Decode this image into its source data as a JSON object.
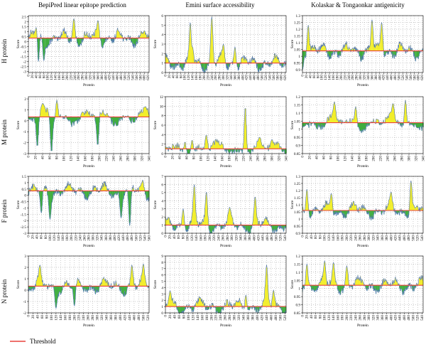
{
  "colors": {
    "above": "#f2ee2a",
    "below": "#3fae3f",
    "line": "#4f74b8",
    "threshold": "#e8423c",
    "grid": "#9a9a9a",
    "axis": "#000000"
  },
  "column_titles": [
    "BepiPred linear epitope prediction",
    "Emini surface accessibility",
    "Kolaskar & Tongaonkar antigenicity"
  ],
  "row_labels": [
    "H protein",
    "M protein",
    "F protein",
    "N protein"
  ],
  "xlabel": "Protein",
  "ylabel": "Score",
  "legend": {
    "label": "Threshold"
  },
  "chart_data": [
    {
      "type": "area",
      "row": 0,
      "col": 0,
      "xticks": [
        0,
        20,
        40,
        60,
        80,
        100,
        120,
        140,
        160,
        180,
        200,
        220,
        240,
        260,
        280,
        300,
        320,
        340,
        360,
        380,
        400,
        420,
        440,
        460,
        480,
        500,
        520,
        540,
        560,
        580,
        600,
        620
      ],
      "yticks": [
        -3,
        -2.5,
        -2,
        -1.5,
        -1,
        -0.5,
        0,
        0.5,
        1,
        1.5,
        2,
        2.5
      ],
      "xlim": [
        0,
        625
      ],
      "ylim": [
        -3.1,
        2.6
      ],
      "threshold": 0.35,
      "n": 625,
      "peaks": [
        [
          50,
          -2.6
        ],
        [
          80,
          -1.9
        ],
        [
          235,
          2.3
        ],
        [
          360,
          2.1
        ],
        [
          40,
          1.4
        ],
        [
          600,
          1.1
        ]
      ]
    },
    {
      "type": "area",
      "row": 0,
      "col": 1,
      "xticks": [
        0,
        20,
        40,
        60,
        80,
        100,
        120,
        140,
        160,
        180,
        200,
        220,
        240,
        260,
        280,
        300,
        320,
        340,
        360,
        380,
        400,
        420,
        440,
        460,
        480,
        500,
        520,
        540,
        560,
        580,
        600,
        620
      ],
      "yticks": [
        0,
        1,
        2,
        3,
        4,
        5,
        6
      ],
      "xlim": [
        0,
        625
      ],
      "ylim": [
        0,
        6
      ],
      "threshold": 1.0,
      "n": 625,
      "peaks": [
        [
          130,
          5.8
        ],
        [
          240,
          5.9
        ],
        [
          300,
          3.0
        ],
        [
          360,
          2.7
        ],
        [
          140,
          2.7
        ]
      ]
    },
    {
      "type": "area",
      "row": 0,
      "col": 2,
      "xticks": [
        0,
        20,
        40,
        60,
        80,
        100,
        120,
        140,
        160,
        180,
        200,
        220,
        240,
        260,
        280,
        300,
        320,
        340,
        360,
        380,
        400,
        420,
        440,
        460,
        480,
        500,
        520,
        540,
        560,
        580,
        600,
        620
      ],
      "yticks": [
        0.9,
        0.95,
        1.0,
        1.05,
        1.1,
        1.15,
        1.2,
        1.25,
        1.3
      ],
      "xlim": [
        0,
        625
      ],
      "ylim": [
        0.88,
        1.3
      ],
      "threshold": 1.04,
      "n": 625,
      "peaks": [
        [
          30,
          1.23
        ],
        [
          360,
          1.27
        ],
        [
          410,
          1.25
        ],
        [
          0,
          0.9
        ]
      ]
    },
    {
      "type": "area",
      "row": 1,
      "col": 0,
      "xticks": [
        0,
        20,
        40,
        60,
        80,
        100,
        120,
        140,
        160,
        180,
        200,
        220,
        240,
        260,
        280,
        300,
        320,
        340
      ],
      "yticks": [
        -3,
        -2,
        -1,
        0,
        1,
        2
      ],
      "xlim": [
        0,
        340
      ],
      "ylim": [
        -3,
        2.2
      ],
      "threshold": 0.35,
      "n": 340,
      "peaks": [
        [
          80,
          1.9
        ],
        [
          40,
          1.6
        ],
        [
          25,
          -2.4
        ],
        [
          65,
          -2.9
        ],
        [
          195,
          -2.3
        ],
        [
          330,
          1.3
        ]
      ]
    },
    {
      "type": "area",
      "row": 1,
      "col": 1,
      "xticks": [
        0,
        20,
        40,
        60,
        80,
        100,
        120,
        140,
        160,
        180,
        200,
        220,
        240,
        260,
        280,
        300,
        320,
        340
      ],
      "yticks": [
        0,
        2,
        4,
        6,
        8,
        10,
        12
      ],
      "xlim": [
        0,
        340
      ],
      "ylim": [
        0,
        12
      ],
      "threshold": 1.0,
      "n": 340,
      "peaks": [
        [
          225,
          10.0
        ],
        [
          115,
          4.0
        ],
        [
          75,
          2.9
        ],
        [
          55,
          2.5
        ],
        [
          265,
          3.5
        ],
        [
          300,
          3.0
        ]
      ]
    },
    {
      "type": "area",
      "row": 1,
      "col": 2,
      "xticks": [
        0,
        20,
        40,
        60,
        80,
        100,
        120,
        140,
        160,
        180,
        200,
        220,
        240,
        260,
        280,
        300,
        320,
        340
      ],
      "yticks": [
        0.85,
        0.9,
        0.95,
        1.0,
        1.05,
        1.1,
        1.15,
        1.2
      ],
      "xlim": [
        0,
        340
      ],
      "ylim": [
        0.85,
        1.2
      ],
      "threshold": 1.04,
      "n": 340,
      "peaks": [
        [
          90,
          1.17
        ],
        [
          150,
          1.14
        ],
        [
          255,
          1.16
        ],
        [
          290,
          1.18
        ]
      ]
    },
    {
      "type": "area",
      "row": 2,
      "col": 0,
      "xticks": [
        0,
        20,
        40,
        60,
        80,
        100,
        120,
        140,
        160,
        180,
        200,
        220,
        240,
        260,
        280,
        300,
        320,
        340,
        360,
        380,
        400,
        420,
        440,
        460,
        480,
        500,
        520,
        540,
        560
      ],
      "yticks": [
        -3,
        -2.5,
        -2,
        -1.5,
        -1,
        -0.5,
        0,
        0.5,
        1,
        1.5
      ],
      "xlim": [
        0,
        560
      ],
      "ylim": [
        -3,
        1.5
      ],
      "threshold": 0.35,
      "n": 560,
      "peaks": [
        [
          530,
          1.2
        ],
        [
          470,
          -2.4
        ],
        [
          100,
          -1.9
        ],
        [
          60,
          -1.4
        ],
        [
          430,
          -1.8
        ]
      ]
    },
    {
      "type": "area",
      "row": 2,
      "col": 1,
      "xticks": [
        0,
        20,
        40,
        60,
        80,
        100,
        120,
        140,
        160,
        180,
        200,
        220,
        240,
        260,
        280,
        300,
        320,
        340,
        360,
        380,
        400,
        420,
        440,
        460,
        480,
        500,
        520,
        540
      ],
      "yticks": [
        0,
        1,
        2,
        3,
        4,
        5,
        6,
        7
      ],
      "xlim": [
        0,
        545
      ],
      "ylim": [
        0,
        7
      ],
      "threshold": 1.0,
      "n": 545,
      "peaks": [
        [
          130,
          6.0
        ],
        [
          185,
          5.1
        ],
        [
          405,
          4.5
        ],
        [
          80,
          3.0
        ],
        [
          290,
          3.2
        ]
      ]
    },
    {
      "type": "area",
      "row": 2,
      "col": 2,
      "xticks": [
        0,
        20,
        40,
        60,
        80,
        100,
        120,
        140,
        160,
        180,
        200,
        220,
        240,
        260,
        280,
        300,
        320,
        340,
        360,
        380,
        400,
        420,
        440,
        460,
        480,
        500,
        520,
        540
      ],
      "yticks": [
        0.9,
        0.95,
        1.0,
        1.05,
        1.1,
        1.15,
        1.2,
        1.25,
        1.3
      ],
      "xlim": [
        0,
        545
      ],
      "ylim": [
        0.9,
        1.3
      ],
      "threshold": 1.06,
      "n": 545,
      "peaks": [
        [
          490,
          1.27
        ],
        [
          20,
          1.21
        ],
        [
          400,
          1.19
        ],
        [
          130,
          1.18
        ]
      ]
    },
    {
      "type": "area",
      "row": 3,
      "col": 0,
      "xticks": [
        0,
        20,
        40,
        60,
        80,
        100,
        120,
        140,
        160,
        180,
        200,
        220,
        240,
        260,
        280,
        300,
        320,
        340,
        360,
        380,
        400,
        420,
        440,
        460,
        480,
        500,
        520
      ],
      "yticks": [
        -2,
        -1,
        0,
        1,
        2,
        3
      ],
      "xlim": [
        0,
        525
      ],
      "ylim": [
        -2,
        3
      ],
      "threshold": 0.35,
      "n": 525,
      "peaks": [
        [
          50,
          2.2
        ],
        [
          450,
          2.2
        ],
        [
          500,
          2.3
        ],
        [
          120,
          -1.6
        ],
        [
          200,
          -1.4
        ]
      ]
    },
    {
      "type": "area",
      "row": 3,
      "col": 1,
      "xticks": [
        0,
        20,
        40,
        60,
        80,
        100,
        120,
        140,
        160,
        180,
        200,
        220,
        240,
        260,
        280,
        300,
        320,
        340,
        360,
        380,
        400,
        420,
        440,
        460,
        480,
        500,
        520
      ],
      "yticks": [
        0,
        1,
        2,
        3,
        4,
        5,
        6,
        7,
        8,
        9
      ],
      "xlim": [
        0,
        525
      ],
      "ylim": [
        0,
        9
      ],
      "threshold": 1.0,
      "n": 525,
      "peaks": [
        [
          440,
          7.6
        ],
        [
          470,
          3.6
        ],
        [
          350,
          2.8
        ],
        [
          20,
          3.5
        ]
      ]
    },
    {
      "type": "area",
      "row": 3,
      "col": 2,
      "xticks": [
        0,
        20,
        40,
        60,
        80,
        100,
        120,
        140,
        160,
        180,
        200,
        220,
        240,
        260,
        280,
        300,
        320,
        340,
        360,
        380,
        400,
        420,
        440,
        460,
        480,
        500,
        520,
        540
      ],
      "yticks": [
        0.85,
        0.9,
        0.95,
        1.0,
        1.05,
        1.1,
        1.15,
        1.2
      ],
      "xlim": [
        0,
        545
      ],
      "ylim": [
        0.85,
        1.2
      ],
      "threshold": 1.02,
      "n": 545,
      "peaks": [
        [
          100,
          1.17
        ],
        [
          140,
          1.16
        ],
        [
          200,
          1.14
        ],
        [
          20,
          1.15
        ]
      ]
    }
  ]
}
